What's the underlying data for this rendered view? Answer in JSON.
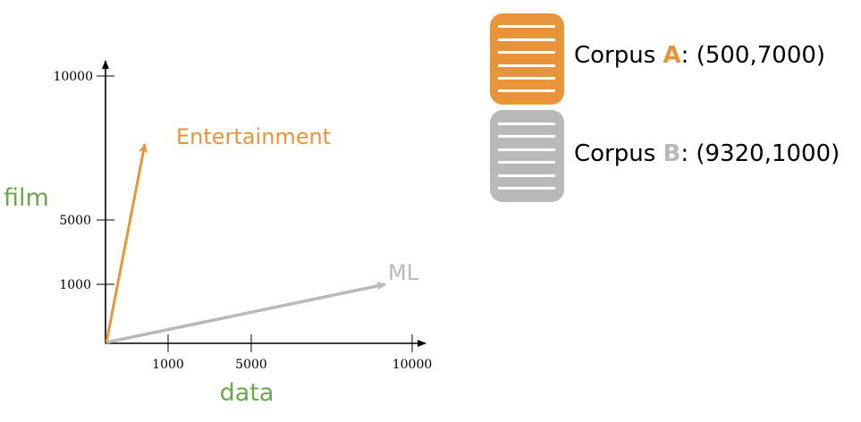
{
  "colors": {
    "orange": "#e8943a",
    "gray": "#b9b9b9",
    "green": "#6aa84f",
    "axis": "#000000"
  },
  "axes": {
    "x_title": "data",
    "y_title": "film",
    "x_ticks": [
      "1000",
      "5000",
      "10000"
    ],
    "y_ticks": [
      "1000",
      "5000",
      "10000"
    ]
  },
  "vectors": [
    {
      "label": "Entertainment",
      "color": "orange"
    },
    {
      "label": "ML",
      "color": "gray"
    }
  ],
  "legend": [
    {
      "prefix": "Corpus ",
      "letter": "A",
      "suffix": ": (500,7000)",
      "color": "orange",
      "icon": "database-icon"
    },
    {
      "prefix": "Corpus ",
      "letter": "B",
      "suffix": ": (9320,1000)",
      "color": "gray",
      "icon": "database-icon"
    }
  ]
}
